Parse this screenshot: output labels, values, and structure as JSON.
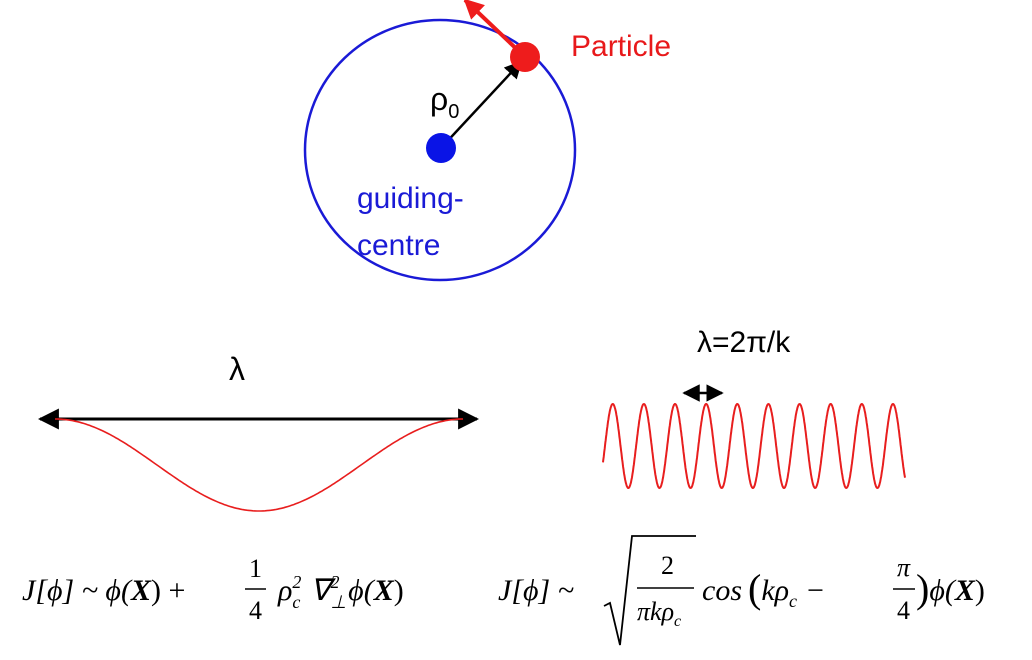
{
  "gyro": {
    "particle_label": "Particle",
    "radius_symbol": "ρ",
    "radius_subscript": "0",
    "guiding_label_line1": "guiding-",
    "guiding_label_line2": "centre"
  },
  "long_wave": {
    "lambda_label": "λ",
    "formula": {
      "lhs": "J[ϕ] ~ ϕ(",
      "X1": "X",
      "mid": ") + ",
      "frac_num": "1",
      "frac_den": "4",
      "rho": "ρ",
      "rho_sub": "c",
      "rho_sup": "2",
      "nabla": "∇",
      "nabla_sub": "⊥",
      "nabla_sup": "2",
      "phi": "ϕ(",
      "X2": "X",
      "close": ")"
    }
  },
  "short_wave": {
    "lambda_label": "λ=2π/k",
    "formula": {
      "lhs": "J[ϕ] ~",
      "sqrt_num": "2",
      "sqrt_den_main": "πkρ",
      "sqrt_den_sub": "c",
      "cos": "cos",
      "lparen": "(",
      "k_rho": "kρ",
      "k_rho_sub": "c",
      "minus": "−",
      "pi_num": "π",
      "pi_den": "4",
      "rparen": ")",
      "phi": "ϕ(",
      "X": "X",
      "close": ")"
    }
  },
  "colors": {
    "orbit": "#1a1ad6",
    "guiding_dot": "#0a14e6",
    "particle": "#ee1c1c",
    "wave": "#e81e1e",
    "arrow": "#000000",
    "label_blue": "#1a1ad6",
    "label_red": "#e8191b"
  }
}
